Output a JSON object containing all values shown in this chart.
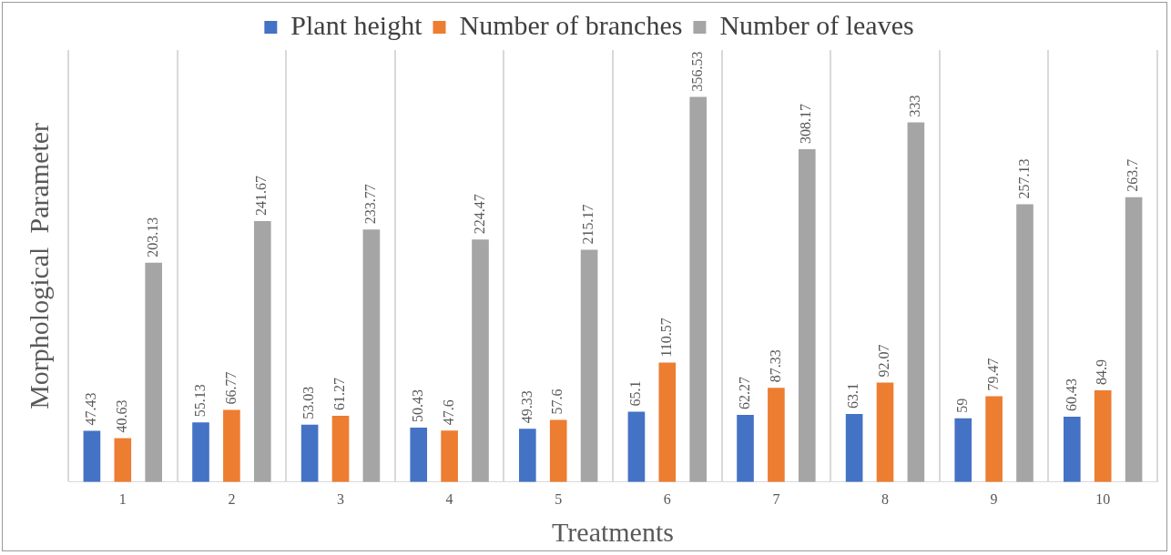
{
  "chart_data": {
    "type": "bar",
    "xlabel": "Treatments",
    "ylabel": "Morphological  Parameter",
    "categories": [
      "1",
      "2",
      "3",
      "4",
      "5",
      "6",
      "7",
      "8",
      "9",
      "10"
    ],
    "series": [
      {
        "name": "Plant height",
        "color": "#4472c4",
        "values": [
          47.43,
          55.13,
          53.03,
          50.43,
          49.33,
          65.1,
          62.27,
          63.1,
          59,
          60.43
        ]
      },
      {
        "name": "Number of branches",
        "color": "#ed7d31",
        "values": [
          40.63,
          66.77,
          61.27,
          47.6,
          57.6,
          110.57,
          87.33,
          92.07,
          79.47,
          84.9
        ]
      },
      {
        "name": "Number of leaves",
        "color": "#a5a5a5",
        "values": [
          203.13,
          241.67,
          233.77,
          224.47,
          215.17,
          356.53,
          308.17,
          333,
          257.13,
          263.7
        ]
      }
    ],
    "data_labels": true,
    "grid": "x",
    "legend": "top"
  }
}
